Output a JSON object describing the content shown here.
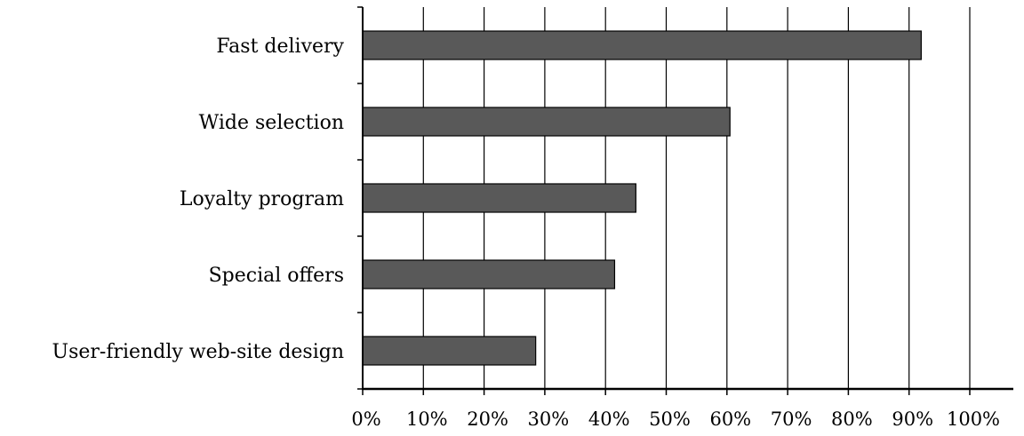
{
  "chart_data": {
    "type": "bar",
    "orientation": "horizontal",
    "categories": [
      "Fast delivery",
      "Wide selection",
      "Loyalty program",
      "Special offers",
      "User-friendly web-site design"
    ],
    "values": [
      92,
      60.5,
      45,
      41.5,
      28.5
    ],
    "xlim": [
      0,
      100
    ],
    "x_ticks": [
      "0%",
      "10%",
      "20%",
      "30%",
      "40%",
      "50%",
      "60%",
      "70%",
      "80%",
      "90%",
      "100%"
    ],
    "title": "",
    "xlabel": "",
    "ylabel": "",
    "grid": "vertical",
    "legend": "none",
    "bar_color": "#595959"
  }
}
